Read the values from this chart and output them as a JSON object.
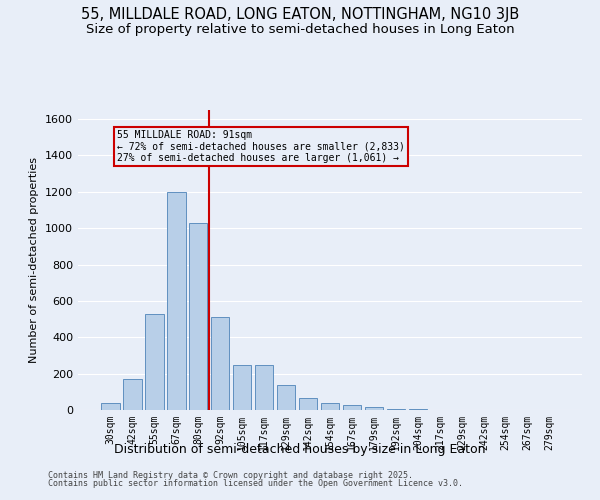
{
  "title_line1": "55, MILLDALE ROAD, LONG EATON, NOTTINGHAM, NG10 3JB",
  "title_line2": "Size of property relative to semi-detached houses in Long Eaton",
  "xlabel": "Distribution of semi-detached houses by size in Long Eaton",
  "ylabel": "Number of semi-detached properties",
  "footnote1": "Contains HM Land Registry data © Crown copyright and database right 2025.",
  "footnote2": "Contains public sector information licensed under the Open Government Licence v3.0.",
  "bar_labels": [
    "30sqm",
    "42sqm",
    "55sqm",
    "67sqm",
    "80sqm",
    "92sqm",
    "105sqm",
    "117sqm",
    "129sqm",
    "142sqm",
    "154sqm",
    "167sqm",
    "179sqm",
    "192sqm",
    "204sqm",
    "217sqm",
    "229sqm",
    "242sqm",
    "254sqm",
    "267sqm",
    "279sqm"
  ],
  "bar_values": [
    40,
    170,
    530,
    1200,
    1030,
    510,
    245,
    245,
    140,
    65,
    40,
    25,
    15,
    8,
    4,
    0,
    0,
    0,
    0,
    0,
    0
  ],
  "bar_color": "#b8cfe8",
  "bar_edge_color": "#6090c0",
  "vline_color": "#cc0000",
  "annotation_text": "55 MILLDALE ROAD: 91sqm\n← 72% of semi-detached houses are smaller (2,833)\n27% of semi-detached houses are larger (1,061) →",
  "annotation_box_color": "#cc0000",
  "ylim": [
    0,
    1650
  ],
  "yticks": [
    0,
    200,
    400,
    600,
    800,
    1000,
    1200,
    1400,
    1600
  ],
  "background_color": "#e8eef8",
  "grid_color": "#ffffff",
  "title_fontsize": 10.5,
  "subtitle_fontsize": 9.5
}
